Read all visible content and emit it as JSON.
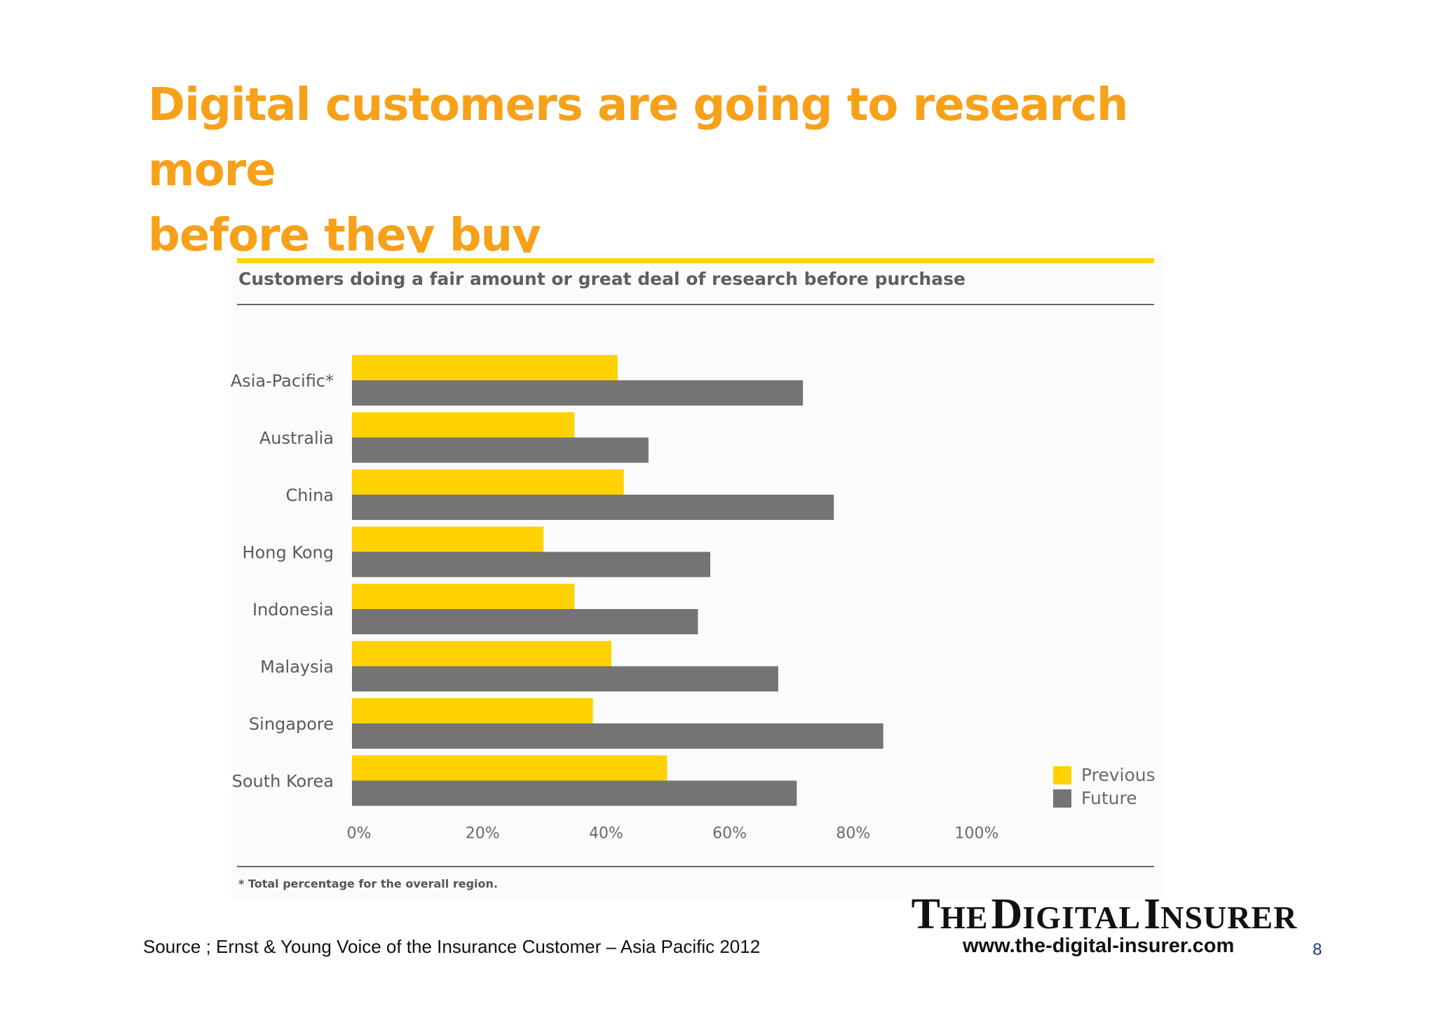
{
  "slide": {
    "title_line1": "Digital customers are going to research more",
    "title_line2": "before they buy",
    "source": "Source ; Ernst & Young Voice of the Insurance Customer – Asia Pacific 2012",
    "page_number": "8"
  },
  "brand": {
    "word1_cap": "T",
    "word1_rest": "HE",
    "word2_cap": "D",
    "word2_rest": "IGITAL",
    "word3_cap": "I",
    "word3_rest": "NSURER",
    "url": "www.the-digital-insurer.com"
  },
  "chart_data": {
    "type": "bar",
    "orientation": "horizontal",
    "title": "Customers doing a fair amount or great deal of research before purchase",
    "footnote": "* Total percentage for the overall region.",
    "categories": [
      "Asia-Pacific*",
      "Australia",
      "China",
      "Hong Kong",
      "Indonesia",
      "Malaysia",
      "Singapore",
      "South Korea"
    ],
    "series": [
      {
        "name": "Previous",
        "color": "#ffd200",
        "values": [
          43,
          36,
          44,
          31,
          36,
          42,
          39,
          51
        ]
      },
      {
        "name": "Future",
        "color": "#747474",
        "values": [
          73,
          48,
          78,
          58,
          56,
          69,
          86,
          72
        ]
      }
    ],
    "xlim": [
      0,
      100
    ],
    "xticks": [
      "0%",
      "20%",
      "40%",
      "60%",
      "80%",
      "100%"
    ],
    "xtick_values": [
      0,
      20,
      40,
      60,
      80,
      100
    ],
    "grid": false,
    "legend_position": "bottom-right"
  }
}
